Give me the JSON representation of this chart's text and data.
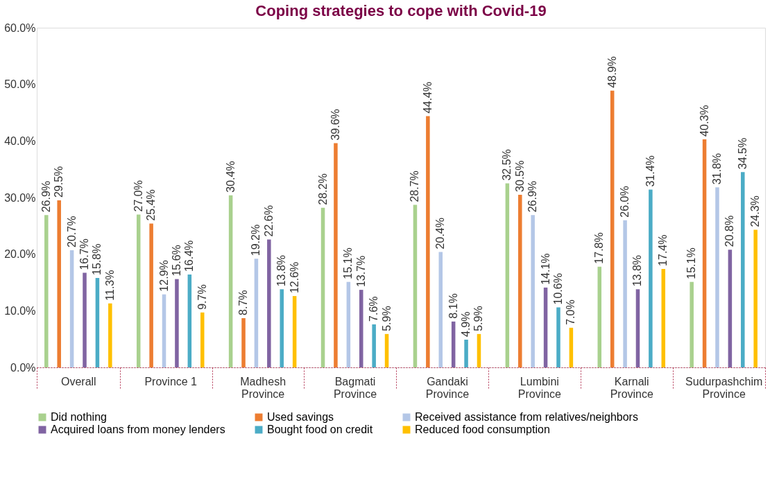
{
  "chart_data": {
    "type": "bar",
    "title": "Coping strategies to cope with Covid-19",
    "categories": [
      "Overall",
      "Province 1",
      "Madhesh\nProvince",
      "Bagmati\nProvince",
      "Gandaki\nProvince",
      "Lumbini\nProvince",
      "Karnali\nProvince",
      "Sudurpashchim\nProvince"
    ],
    "series": [
      {
        "name": "Did nothing",
        "color": "#a9d18e",
        "values": [
          26.9,
          27.0,
          30.4,
          28.2,
          28.7,
          32.5,
          17.8,
          15.1
        ],
        "value_labels": [
          "26.9%",
          "27.0%",
          "30.4%",
          "28.2%",
          "28.7%",
          "32.5%",
          "17.8%",
          "15.1%"
        ]
      },
      {
        "name": "Used savings",
        "color": "#ed7d31",
        "values": [
          29.5,
          25.4,
          8.7,
          39.6,
          44.4,
          30.5,
          48.9,
          40.3
        ],
        "value_labels": [
          "29.5%",
          "25.4%",
          "8.7%",
          "39.6%",
          "44.4%",
          "30.5%",
          "48.9%",
          "40.3%"
        ]
      },
      {
        "name": "Received assistance from relatives/neighbors",
        "color": "#b4c7e7",
        "values": [
          20.7,
          12.9,
          19.2,
          15.1,
          20.4,
          26.9,
          26.0,
          31.8
        ],
        "value_labels": [
          "20.7%",
          "12.9%",
          "19.2%",
          "15.1%",
          "20.4%",
          "26.9%",
          "26.0%",
          "31.8%"
        ]
      },
      {
        "name": "Acquired loans from money lenders",
        "color": "#8064a2",
        "values": [
          16.7,
          15.6,
          22.6,
          13.7,
          8.1,
          14.1,
          13.8,
          20.8
        ],
        "value_labels": [
          "16.7%",
          "15.6%",
          "22.6%",
          "13.7%",
          "8.1%",
          "14.1%",
          "13.8%",
          "20.8%"
        ]
      },
      {
        "name": "Bought food on credit",
        "color": "#4bacc6",
        "values": [
          15.8,
          16.4,
          13.8,
          7.6,
          4.9,
          10.6,
          31.4,
          34.5
        ],
        "value_labels": [
          "15.8%",
          "16.4%",
          "13.8%",
          "7.6%",
          "4.9%",
          "10.6%",
          "31.4%",
          "34.5%"
        ]
      },
      {
        "name": "Reduced food consumption",
        "color": "#ffc000",
        "values": [
          11.3,
          9.7,
          12.6,
          5.9,
          5.9,
          7.0,
          17.4,
          24.3
        ],
        "value_labels": [
          "11.3%",
          "9.7%",
          "12.6%",
          "5.9%",
          "5.9%",
          "7.0%",
          "17.4%",
          "24.3%"
        ]
      }
    ],
    "ylim": [
      0,
      60
    ],
    "yticks": [
      {
        "value": 0,
        "label": "0.0%"
      },
      {
        "value": 10,
        "label": "10.0%"
      },
      {
        "value": 20,
        "label": "20.0%"
      },
      {
        "value": 30,
        "label": "30.0%"
      },
      {
        "value": 40,
        "label": "40.0%"
      },
      {
        "value": 50,
        "label": "50.0%"
      },
      {
        "value": 60,
        "label": "60.0%"
      }
    ],
    "grid": false,
    "legend": "bottom"
  }
}
